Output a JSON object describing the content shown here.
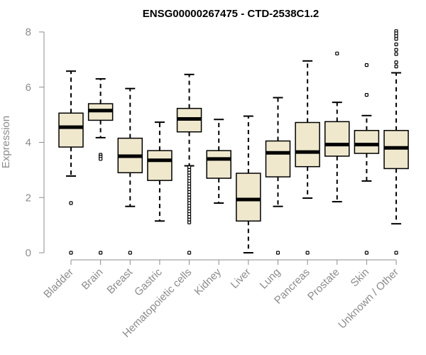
{
  "chart_data": {
    "type": "boxplot",
    "title": "ENSG00000267475 - CTD-2538C1.2",
    "xlabel": "",
    "ylabel": "Expression",
    "ylim": [
      0,
      8
    ],
    "yticks": [
      0,
      2,
      4,
      6,
      8
    ],
    "grid": false,
    "colors": {
      "box_fill": "#efe8cd",
      "box_stroke": "#000000",
      "axis": "#8c8c8c"
    },
    "categories": [
      "Bladder",
      "Brain",
      "Breast",
      "Gastric",
      "Hematopoietic cells",
      "Kidney",
      "Liver",
      "Lung",
      "Pancreas",
      "Prostate",
      "Skin",
      "Unknown / Other"
    ],
    "series": [
      {
        "category": "Bladder",
        "whisker_low": 2.78,
        "q1": 3.83,
        "median": 4.55,
        "q3": 5.06,
        "whisker_high": 6.58,
        "outliers": [
          1.8,
          0
        ]
      },
      {
        "category": "Brain",
        "whisker_low": 4.17,
        "q1": 4.8,
        "median": 5.15,
        "q3": 5.4,
        "whisker_high": 6.3,
        "outliers": [
          3.55,
          3.48,
          3.4,
          0
        ]
      },
      {
        "category": "Breast",
        "whisker_low": 1.68,
        "q1": 2.9,
        "median": 3.5,
        "q3": 4.15,
        "whisker_high": 5.95,
        "outliers": [
          0
        ]
      },
      {
        "category": "Gastric",
        "whisker_low": 1.15,
        "q1": 2.62,
        "median": 3.35,
        "q3": 3.7,
        "whisker_high": 4.73,
        "outliers": []
      },
      {
        "category": "Hematopoietic cells",
        "whisker_low": 3.15,
        "q1": 4.38,
        "median": 4.85,
        "q3": 5.23,
        "whisker_high": 6.46,
        "outliers": [
          3.1,
          3.0,
          2.9,
          2.8,
          2.7,
          2.6,
          2.5,
          2.4,
          2.3,
          2.2,
          2.1,
          2.0,
          1.9,
          1.8,
          1.7,
          1.6,
          1.5,
          1.4,
          1.3,
          1.2,
          1.1,
          0
        ]
      },
      {
        "category": "Kidney",
        "whisker_low": 1.8,
        "q1": 2.7,
        "median": 3.4,
        "q3": 3.7,
        "whisker_high": 4.83,
        "outliers": []
      },
      {
        "category": "Liver",
        "whisker_low": 0,
        "q1": 1.15,
        "median": 1.93,
        "q3": 2.88,
        "whisker_high": 4.95,
        "outliers": []
      },
      {
        "category": "Lung",
        "whisker_low": 1.68,
        "q1": 2.75,
        "median": 3.62,
        "q3": 4.05,
        "whisker_high": 5.62,
        "outliers": [
          0
        ]
      },
      {
        "category": "Pancreas",
        "whisker_low": 1.98,
        "q1": 3.12,
        "median": 3.65,
        "q3": 4.72,
        "whisker_high": 6.95,
        "outliers": [
          0
        ]
      },
      {
        "category": "Prostate",
        "whisker_low": 1.85,
        "q1": 3.5,
        "median": 3.92,
        "q3": 4.75,
        "whisker_high": 5.45,
        "outliers": [
          7.22
        ]
      },
      {
        "category": "Skin",
        "whisker_low": 2.6,
        "q1": 3.6,
        "median": 3.92,
        "q3": 4.43,
        "whisker_high": 4.97,
        "outliers": [
          6.8,
          5.72,
          0
        ]
      },
      {
        "category": "Unknown / Other",
        "whisker_low": 1.05,
        "q1": 3.05,
        "median": 3.8,
        "q3": 4.43,
        "whisker_high": 6.52,
        "outliers": [
          8.03,
          7.95,
          7.85,
          7.75,
          7.55,
          7.35,
          7.2,
          6.9,
          6.75,
          0
        ]
      }
    ]
  }
}
